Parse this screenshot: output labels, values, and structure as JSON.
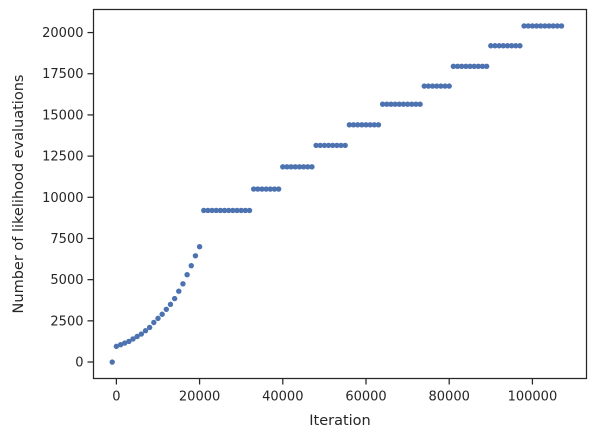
{
  "chart_data": {
    "type": "scatter",
    "title": "",
    "xlabel": "Iteration",
    "ylabel": "Number of likelihood evaluations",
    "xlim": [
      -5500,
      113000
    ],
    "ylim": [
      -1000,
      21400
    ],
    "xticks": [
      0,
      20000,
      40000,
      60000,
      80000,
      100000
    ],
    "yticks": [
      0,
      2500,
      5000,
      7500,
      10000,
      12500,
      15000,
      17500,
      20000
    ],
    "grid": false,
    "legend": "none",
    "marker_color": "#4c72b0",
    "series": [
      {
        "name": "",
        "x": [
          -1000,
          0,
          1000,
          2000,
          3000,
          4000,
          5000,
          6000,
          7000,
          8000,
          9000,
          10000,
          11000,
          12000,
          13000,
          14000,
          15000,
          16000,
          17000,
          18000,
          19000,
          20000,
          21000,
          22000,
          23000,
          24000,
          25000,
          26000,
          27000,
          28000,
          29000,
          30000,
          31000,
          32000,
          33000,
          34000,
          35000,
          36000,
          37000,
          38000,
          39000,
          40000,
          41000,
          42000,
          43000,
          44000,
          45000,
          46000,
          47000,
          48000,
          49000,
          50000,
          51000,
          52000,
          53000,
          54000,
          55000,
          56000,
          57000,
          58000,
          59000,
          60000,
          61000,
          62000,
          63000,
          64000,
          65000,
          66000,
          67000,
          68000,
          69000,
          70000,
          71000,
          72000,
          73000,
          74000,
          75000,
          76000,
          77000,
          78000,
          79000,
          80000,
          81000,
          82000,
          83000,
          84000,
          85000,
          86000,
          87000,
          88000,
          89000,
          90000,
          91000,
          92000,
          93000,
          94000,
          95000,
          96000,
          97000,
          98000,
          99000,
          100000,
          101000,
          102000,
          103000,
          104000,
          105000,
          106000,
          107000
        ],
        "y": [
          0,
          950,
          1050,
          1150,
          1250,
          1400,
          1550,
          1700,
          1900,
          2100,
          2400,
          2650,
          2900,
          3200,
          3500,
          3850,
          4300,
          4750,
          5300,
          5850,
          6450,
          7000,
          9200,
          9200,
          9200,
          9200,
          9200,
          9200,
          9200,
          9200,
          9200,
          9200,
          9200,
          9200,
          10500,
          10500,
          10500,
          10500,
          10500,
          10500,
          10500,
          11850,
          11850,
          11850,
          11850,
          11850,
          11850,
          11850,
          11850,
          13150,
          13150,
          13150,
          13150,
          13150,
          13150,
          13150,
          13150,
          14400,
          14400,
          14400,
          14400,
          14400,
          14400,
          14400,
          14400,
          15650,
          15650,
          15650,
          15650,
          15650,
          15650,
          15650,
          15650,
          15650,
          15650,
          16750,
          16750,
          16750,
          16750,
          16750,
          16750,
          16750,
          17950,
          17950,
          17950,
          17950,
          17950,
          17950,
          17950,
          17950,
          17950,
          19200,
          19200,
          19200,
          19200,
          19200,
          19200,
          19200,
          19200,
          20400,
          20400,
          20400,
          20400,
          20400,
          20400,
          20400,
          20400,
          20400,
          20400
        ]
      }
    ]
  }
}
